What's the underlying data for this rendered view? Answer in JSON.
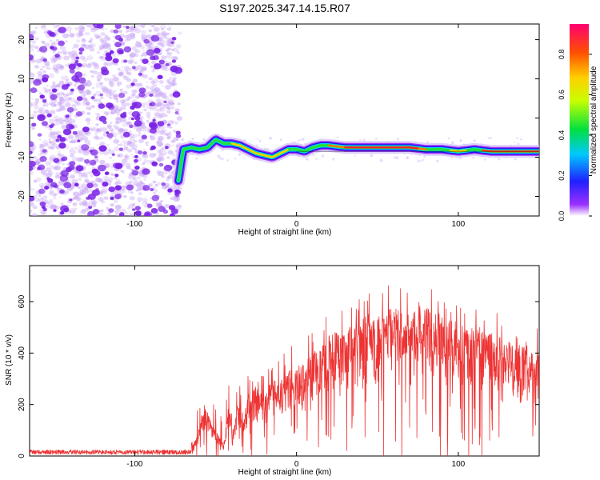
{
  "title": "S197.2025.347.14.15.R07",
  "chart_data": [
    {
      "type": "heatmap",
      "title": "S197.2025.347.14.15.R07",
      "xlabel": "Height of straight line (km)",
      "ylabel": "Frequency (Hz)",
      "xlim": [
        -165,
        150
      ],
      "ylim": [
        -25,
        24
      ],
      "xticks": [
        -100,
        0,
        100
      ],
      "yticks": [
        20,
        10,
        0,
        -10,
        -20
      ],
      "noise_region_x": [
        -165,
        -73
      ],
      "track": {
        "x": [
          -73,
          -70,
          -65,
          -60,
          -55,
          -50,
          -45,
          -40,
          -35,
          -30,
          -25,
          -20,
          -15,
          -10,
          -5,
          0,
          5,
          10,
          15,
          20,
          30,
          40,
          50,
          60,
          70,
          80,
          90,
          100,
          110,
          120,
          130,
          140,
          150
        ],
        "y": [
          -16,
          -8,
          -7.5,
          -8,
          -7.5,
          -5.5,
          -6.5,
          -6.5,
          -7,
          -8,
          -9,
          -9.5,
          -10,
          -9,
          -8,
          -8,
          -8.5,
          -7.5,
          -7,
          -7,
          -7.5,
          -7.5,
          -7.5,
          -7.5,
          -7.5,
          -8,
          -8,
          -8.5,
          -8,
          -8.5,
          -8.5,
          -8.5,
          -8.5
        ]
      },
      "colorbar": {
        "label": "Normalized spectral amplitude",
        "range": [
          0,
          0.95
        ],
        "ticks": [
          0.0,
          0.2,
          0.4,
          0.6,
          0.8
        ],
        "tick_labels": [
          "0.0",
          "0.2",
          "0.4",
          "0.6",
          "0.8"
        ]
      },
      "colors": {
        "track_edge": "#1a10e8",
        "track_core": "#ff2020",
        "noise": "#7a22e6"
      }
    },
    {
      "type": "line",
      "xlabel": "Height of straight line (km)",
      "ylabel": "SNR (10 * v/v)",
      "xlim": [
        -165,
        150
      ],
      "ylim": [
        0,
        740
      ],
      "xticks": [
        -100,
        0,
        100
      ],
      "yticks": [
        0,
        200,
        400,
        600
      ],
      "series": [
        {
          "name": "SNR",
          "color": "#ee3333",
          "x": [
            -165,
            -140,
            -115,
            -90,
            -70,
            -62,
            -59,
            -57,
            -55,
            -52,
            -48,
            -45,
            -42,
            -39,
            -36,
            -33,
            -30,
            -25,
            -20,
            -15,
            -10,
            -5,
            0,
            5,
            10,
            15,
            20,
            30,
            40,
            50,
            60,
            70,
            80,
            90,
            100,
            110,
            120,
            130,
            140,
            150
          ],
          "y": [
            15,
            15,
            15,
            15,
            20,
            70,
            150,
            200,
            170,
            120,
            80,
            50,
            200,
            100,
            220,
            150,
            240,
            270,
            230,
            300,
            280,
            340,
            350,
            360,
            400,
            430,
            470,
            500,
            530,
            560,
            580,
            560,
            570,
            540,
            520,
            500,
            480,
            450,
            430,
            420
          ]
        }
      ]
    }
  ]
}
